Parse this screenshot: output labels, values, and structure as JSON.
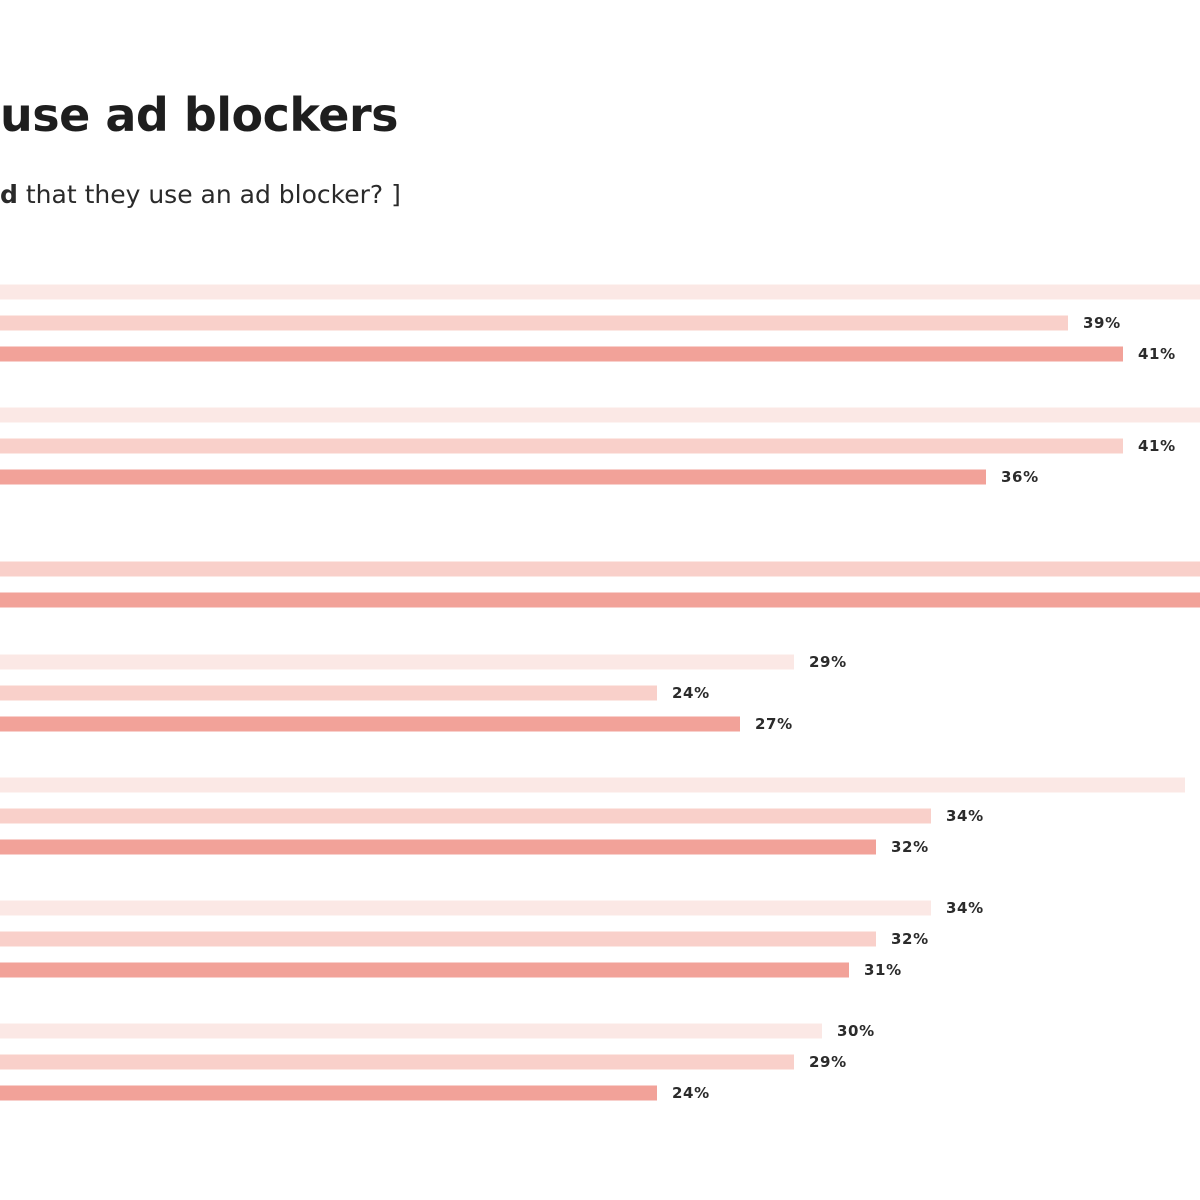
{
  "title": "use ad blockers",
  "subtitle": {
    "bold_part": "d",
    "rest": " that they use an ad blocker? ]"
  },
  "colors": {
    "light": "#fbe8e5",
    "medium": "#f9d0ca",
    "dark": "#f2a299"
  },
  "chart_data": {
    "type": "bar",
    "orientation": "horizontal",
    "x_scale": "visible bars extend from the left edge of the cropped image; 41% spans approximately 1123 px of visible width",
    "groups": [
      {
        "values": [
          null,
          39,
          41
        ],
        "labels": [
          "",
          "39%",
          "41%"
        ]
      },
      {
        "values": [
          null,
          41,
          36
        ],
        "labels": [
          "",
          "41%",
          "36%"
        ]
      },
      {
        "values": [
          null,
          null
        ],
        "labels": [
          "",
          ""
        ]
      },
      {
        "values": [
          29,
          24,
          27
        ],
        "labels": [
          "29%",
          "24%",
          "27%"
        ]
      },
      {
        "values": [
          null,
          34,
          32
        ],
        "labels": [
          "",
          "34%",
          "32%"
        ]
      },
      {
        "values": [
          34,
          32,
          31
        ],
        "labels": [
          "34%",
          "32%",
          "31%"
        ]
      },
      {
        "values": [
          30,
          29,
          24
        ],
        "labels": [
          "30%",
          "29%",
          "24%"
        ]
      }
    ]
  }
}
